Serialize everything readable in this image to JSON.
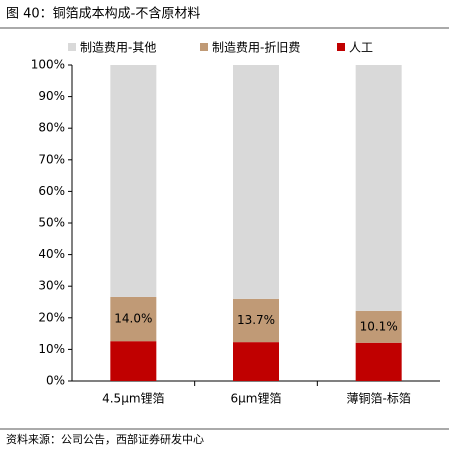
{
  "chart_data": {
    "type": "stacked_bar",
    "title": "图 40：铜箔成本构成-不含原材料",
    "source": "资料来源：公司公告，西部证券研发中心",
    "categories": [
      "4.5μm锂箔",
      "6μm锂箔",
      "薄铜箔-标箔"
    ],
    "series": [
      {
        "name": "制造费用-其他",
        "color": "#d9d9d9",
        "values": [
          73.4,
          74.0,
          77.8
        ]
      },
      {
        "name": "制造费用-折旧费",
        "color": "#c09a76",
        "values": [
          14.0,
          13.7,
          10.1
        ],
        "value_labels": [
          "14.0%",
          "13.7%",
          "10.1%"
        ]
      },
      {
        "name": "人工",
        "color": "#c00000",
        "values": [
          12.6,
          12.3,
          12.1
        ]
      }
    ],
    "ylim": [
      0,
      100
    ],
    "yticks": [
      {
        "value": 0,
        "label": "0%"
      },
      {
        "value": 10,
        "label": "10%"
      },
      {
        "value": 20,
        "label": "20%"
      },
      {
        "value": 30,
        "label": "30%"
      },
      {
        "value": 40,
        "label": "40%"
      },
      {
        "value": 50,
        "label": "50%"
      },
      {
        "value": 60,
        "label": "60%"
      },
      {
        "value": 70,
        "label": "70%"
      },
      {
        "value": 80,
        "label": "80%"
      },
      {
        "value": 90,
        "label": "90%"
      },
      {
        "value": 100,
        "label": "100%"
      }
    ],
    "grid": false
  }
}
